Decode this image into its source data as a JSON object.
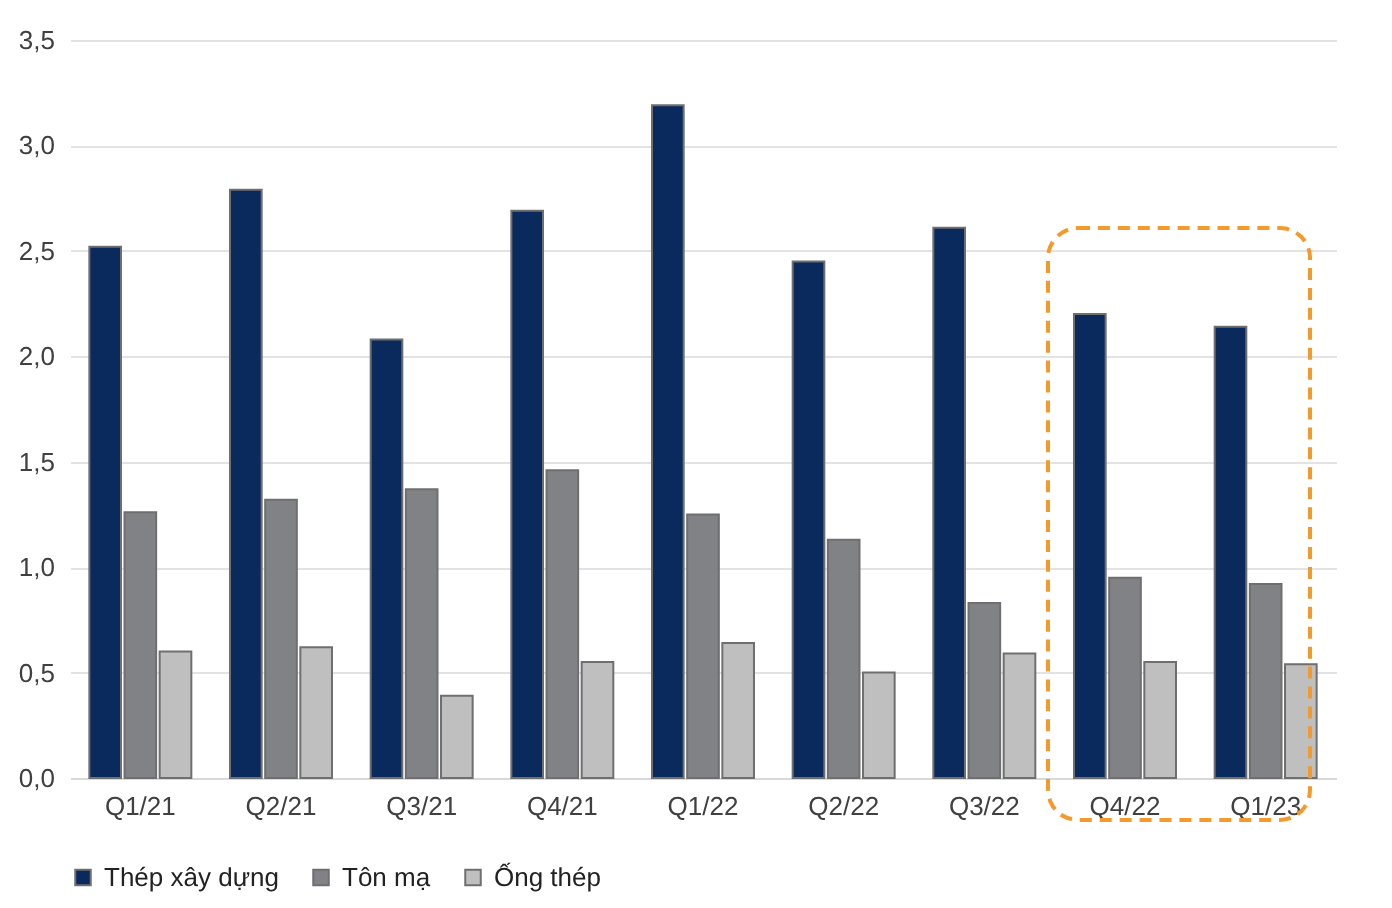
{
  "chart_data": {
    "type": "bar",
    "categories": [
      "Q1/21",
      "Q2/21",
      "Q3/21",
      "Q4/21",
      "Q1/22",
      "Q2/22",
      "Q3/22",
      "Q4/22",
      "Q1/23"
    ],
    "series": [
      {
        "name": "Thép xây dựng",
        "color": "#0a2a5e",
        "values": [
          2.52,
          2.79,
          2.08,
          2.69,
          3.19,
          2.45,
          2.61,
          2.2,
          2.14
        ]
      },
      {
        "name": "Tôn mạ",
        "color": "#808285",
        "values": [
          1.26,
          1.32,
          1.37,
          1.46,
          1.25,
          1.13,
          0.83,
          0.95,
          0.92
        ]
      },
      {
        "name": "Ống thép",
        "color": "#bfbfbf",
        "values": [
          0.6,
          0.62,
          0.39,
          0.55,
          0.64,
          0.5,
          0.59,
          0.55,
          0.54
        ]
      }
    ],
    "ylim": [
      0,
      3.5
    ],
    "yticks": [
      {
        "value": 0,
        "label": "0,0"
      },
      {
        "value": 0.5,
        "label": "0,5"
      },
      {
        "value": 1,
        "label": "1,0"
      },
      {
        "value": 1.5,
        "label": "1,5"
      },
      {
        "value": 2,
        "label": "2,0"
      },
      {
        "value": 2.5,
        "label": "2,5"
      },
      {
        "value": 3,
        "label": "3,0"
      },
      {
        "value": 3.5,
        "label": "3,5"
      }
    ],
    "grid": "y",
    "legend": "bottom"
  }
}
